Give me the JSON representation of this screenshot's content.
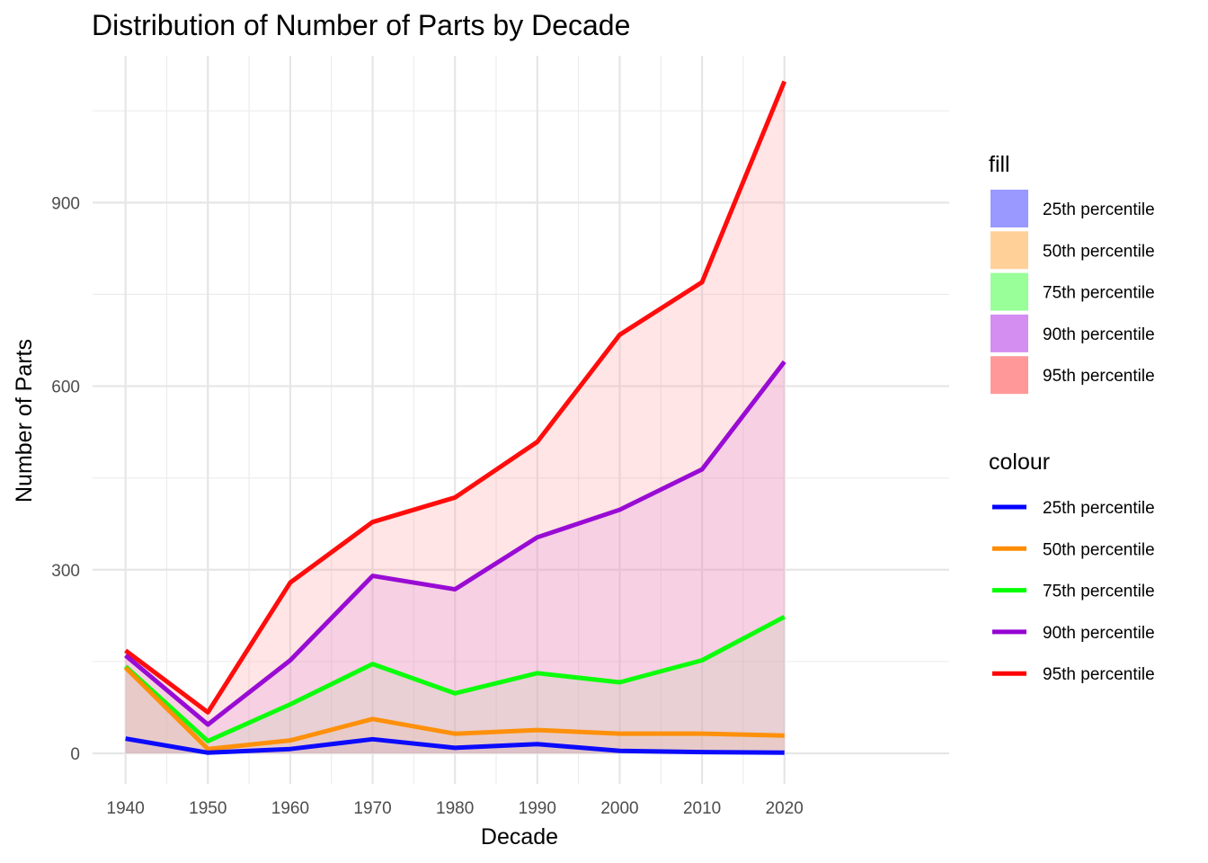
{
  "chart_data": {
    "type": "area",
    "title": "Distribution of Number of Parts by Decade",
    "xlabel": "Decade",
    "ylabel": "Number of Parts",
    "x": [
      1940,
      1950,
      1960,
      1970,
      1980,
      1990,
      2000,
      2010,
      2020
    ],
    "x_ticks": [
      "1940",
      "1950",
      "1960",
      "1970",
      "1980",
      "1990",
      "2000",
      "2010",
      "2020"
    ],
    "y_ticks": [
      "0",
      "300",
      "600",
      "900"
    ],
    "ylim": [
      -50,
      1140
    ],
    "xlim": [
      1936,
      2040
    ],
    "grid": true,
    "legend_position": "right",
    "series": [
      {
        "name": "25th percentile",
        "line_color": "#0000ff",
        "fill_color": "#9999ff",
        "values": [
          24,
          1,
          7,
          23,
          9,
          15,
          4,
          2,
          1
        ]
      },
      {
        "name": "50th percentile",
        "line_color": "#ff8c00",
        "fill_color": "#ffd199",
        "values": [
          140,
          7,
          21,
          56,
          32,
          38,
          32,
          32,
          29
        ]
      },
      {
        "name": "75th percentile",
        "line_color": "#00ff00",
        "fill_color": "#99ff99",
        "values": [
          142,
          20,
          80,
          146,
          98,
          131,
          116,
          152,
          223
        ]
      },
      {
        "name": "90th percentile",
        "line_color": "#9400d3",
        "fill_color": "#d48ef2",
        "values": [
          160,
          47,
          152,
          290,
          268,
          353,
          398,
          464,
          640
        ]
      },
      {
        "name": "95th percentile",
        "line_color": "#ff0000",
        "fill_color": "#ff9999",
        "values": [
          168,
          67,
          279,
          378,
          418,
          509,
          684,
          770,
          1098
        ]
      }
    ],
    "legends": {
      "fill_title": "fill",
      "colour_title": "colour"
    }
  }
}
